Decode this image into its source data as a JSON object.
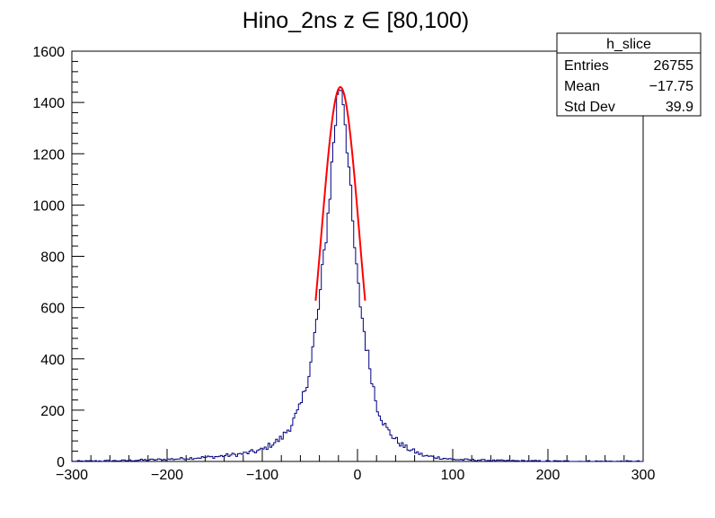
{
  "chart_data": {
    "type": "histogram",
    "title": "Hino_2ns z  ∈ [80,100)",
    "xlabel": "",
    "ylabel": "",
    "xlim": [
      -300,
      300
    ],
    "ylim": [
      0,
      1600
    ],
    "x_ticks": [
      -300,
      -200,
      -100,
      0,
      100,
      200,
      300
    ],
    "y_ticks": [
      0,
      200,
      400,
      600,
      800,
      1000,
      1200,
      1400,
      1600
    ],
    "grid": false,
    "legend": "none",
    "stats_box": {
      "name": "h_slice",
      "rows": [
        {
          "label": "Entries",
          "value": "26755"
        },
        {
          "label": "Mean",
          "value": "−17.75"
        },
        {
          "label": "Std Dev",
          "value": "39.9"
        }
      ]
    },
    "series": [
      {
        "kind": "histogram",
        "color": "#000080",
        "bin_width": 2,
        "peak": {
          "x": -18,
          "y": 1480
        },
        "samples": [
          {
            "x": -300,
            "y": 0
          },
          {
            "x": -250,
            "y": 3
          },
          {
            "x": -200,
            "y": 8
          },
          {
            "x": -150,
            "y": 18
          },
          {
            "x": -120,
            "y": 30
          },
          {
            "x": -100,
            "y": 45
          },
          {
            "x": -80,
            "y": 90
          },
          {
            "x": -70,
            "y": 140
          },
          {
            "x": -60,
            "y": 210
          },
          {
            "x": -50,
            "y": 360
          },
          {
            "x": -40,
            "y": 620
          },
          {
            "x": -30,
            "y": 1000
          },
          {
            "x": -25,
            "y": 1250
          },
          {
            "x": -20,
            "y": 1450
          },
          {
            "x": -18,
            "y": 1480
          },
          {
            "x": -15,
            "y": 1420
          },
          {
            "x": -10,
            "y": 1200
          },
          {
            "x": -5,
            "y": 920
          },
          {
            "x": 0,
            "y": 700
          },
          {
            "x": 5,
            "y": 560
          },
          {
            "x": 10,
            "y": 430
          },
          {
            "x": 15,
            "y": 330
          },
          {
            "x": 20,
            "y": 220
          },
          {
            "x": 30,
            "y": 130
          },
          {
            "x": 40,
            "y": 85
          },
          {
            "x": 50,
            "y": 55
          },
          {
            "x": 70,
            "y": 22
          },
          {
            "x": 100,
            "y": 8
          },
          {
            "x": 150,
            "y": 3
          },
          {
            "x": 200,
            "y": 1
          },
          {
            "x": 300,
            "y": 0
          }
        ]
      },
      {
        "kind": "fit",
        "color": "#ff0000",
        "x_range": [
          -44,
          8
        ],
        "mu": -18,
        "sigma": 20,
        "amplitude": 1460
      }
    ]
  }
}
